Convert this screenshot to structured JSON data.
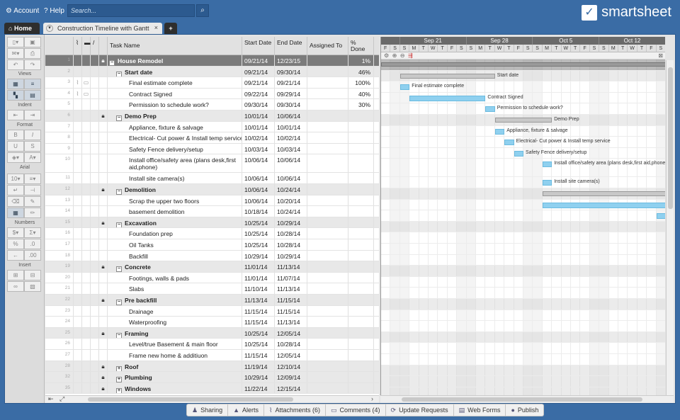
{
  "topbar": {
    "account_label": "Account",
    "help_label": "Help",
    "search_placeholder": "Search...",
    "logo_text": "smartsheet"
  },
  "tabs": {
    "home_label": "Home",
    "sheet_label": "Construction Timeline with Gantt",
    "close_glyph": "×",
    "add_glyph": "+"
  },
  "toolbar": {
    "sections": [
      "Views",
      "Indent",
      "Format",
      "Arial",
      "Numbers",
      "Insert"
    ],
    "font_size": "10"
  },
  "grid": {
    "headers": [
      "Task Name",
      "Start Date",
      "End Date",
      "Assigned To",
      "% Done"
    ],
    "rows": [
      {
        "num": "1",
        "task": "House Remodel",
        "level": 0,
        "type": "first",
        "toggle": "-",
        "lock": true,
        "start": "09/21/14",
        "end": "12/23/15",
        "pct": "1%"
      },
      {
        "num": "2",
        "task": "Start date",
        "level": 1,
        "type": "parent",
        "toggle": "-",
        "lock": false,
        "start": "09/21/14",
        "end": "09/30/14",
        "pct": "46%"
      },
      {
        "num": "3",
        "task": "Final estimate complete",
        "level": 2,
        "type": "child",
        "attach": true,
        "start": "09/21/14",
        "end": "09/21/14",
        "pct": "100%"
      },
      {
        "num": "4",
        "task": "Contract Signed",
        "level": 2,
        "type": "child",
        "attach": true,
        "start": "09/22/14",
        "end": "09/29/14",
        "pct": "40%"
      },
      {
        "num": "5",
        "task": "Permission to schedule work?",
        "level": 2,
        "type": "child",
        "start": "09/30/14",
        "end": "09/30/14",
        "pct": "30%"
      },
      {
        "num": "6",
        "task": "Demo Prep",
        "level": 1,
        "type": "parent",
        "toggle": "-",
        "lock": true,
        "start": "10/01/14",
        "end": "10/06/14",
        "pct": ""
      },
      {
        "num": "7",
        "task": "Appliance, fixture & salvage",
        "level": 2,
        "type": "child",
        "start": "10/01/14",
        "end": "10/01/14",
        "pct": ""
      },
      {
        "num": "8",
        "task": "Electrical- Cut power & Install temp service",
        "level": 2,
        "type": "child",
        "start": "10/02/14",
        "end": "10/02/14",
        "pct": ""
      },
      {
        "num": "9",
        "task": "Safety Fence delivery/setup",
        "level": 2,
        "type": "child",
        "start": "10/03/14",
        "end": "10/03/14",
        "pct": ""
      },
      {
        "num": "10",
        "task": "Install office/safety area (plans desk,first aid,phone)",
        "level": 2,
        "type": "child",
        "tall": true,
        "start": "10/06/14",
        "end": "10/06/14",
        "pct": ""
      },
      {
        "num": "11",
        "task": "Install site camera(s)",
        "level": 2,
        "type": "child",
        "start": "10/06/14",
        "end": "10/06/14",
        "pct": ""
      },
      {
        "num": "12",
        "task": "Demolition",
        "level": 1,
        "type": "parent",
        "toggle": "-",
        "lock": true,
        "start": "10/06/14",
        "end": "10/24/14",
        "pct": ""
      },
      {
        "num": "13",
        "task": "Scrap the upper two floors",
        "level": 2,
        "type": "child",
        "start": "10/06/14",
        "end": "10/20/14",
        "pct": ""
      },
      {
        "num": "14",
        "task": "basement demolition",
        "level": 2,
        "type": "child",
        "start": "10/18/14",
        "end": "10/24/14",
        "pct": ""
      },
      {
        "num": "15",
        "task": "Excavation",
        "level": 1,
        "type": "parent",
        "toggle": "-",
        "lock": true,
        "start": "10/25/14",
        "end": "10/29/14",
        "pct": ""
      },
      {
        "num": "16",
        "task": "Foundation prep",
        "level": 2,
        "type": "child",
        "start": "10/25/14",
        "end": "10/28/14",
        "pct": ""
      },
      {
        "num": "17",
        "task": "Oil Tanks",
        "level": 2,
        "type": "child",
        "start": "10/25/14",
        "end": "10/28/14",
        "pct": ""
      },
      {
        "num": "18",
        "task": "Backfill",
        "level": 2,
        "type": "child",
        "start": "10/29/14",
        "end": "10/29/14",
        "pct": ""
      },
      {
        "num": "19",
        "task": "Concrete",
        "level": 1,
        "type": "parent",
        "toggle": "-",
        "lock": true,
        "start": "11/01/14",
        "end": "11/13/14",
        "pct": ""
      },
      {
        "num": "20",
        "task": "Footings, walls & pads",
        "level": 2,
        "type": "child",
        "start": "11/01/14",
        "end": "11/07/14",
        "pct": ""
      },
      {
        "num": "21",
        "task": "Slabs",
        "level": 2,
        "type": "child",
        "start": "11/10/14",
        "end": "11/13/14",
        "pct": ""
      },
      {
        "num": "22",
        "task": "Pre backfill",
        "level": 1,
        "type": "parent",
        "toggle": "-",
        "lock": true,
        "start": "11/13/14",
        "end": "11/15/14",
        "pct": ""
      },
      {
        "num": "23",
        "task": "Drainage",
        "level": 2,
        "type": "child",
        "start": "11/15/14",
        "end": "11/15/14",
        "pct": ""
      },
      {
        "num": "24",
        "task": "Waterproofing",
        "level": 2,
        "type": "child",
        "start": "11/15/14",
        "end": "11/13/14",
        "pct": ""
      },
      {
        "num": "25",
        "task": "Framing",
        "level": 1,
        "type": "parent",
        "toggle": "-",
        "lock": true,
        "start": "10/25/14",
        "end": "12/05/14",
        "pct": ""
      },
      {
        "num": "26",
        "task": "Level/true Basement & main floor",
        "level": 2,
        "type": "child",
        "start": "10/25/14",
        "end": "10/28/14",
        "pct": ""
      },
      {
        "num": "27",
        "task": "Frame new home & additiuon",
        "level": 2,
        "type": "child",
        "start": "11/15/14",
        "end": "12/05/14",
        "pct": ""
      },
      {
        "num": "28",
        "task": "Roof",
        "level": 1,
        "type": "parent",
        "toggle": "+",
        "lock": true,
        "start": "11/19/14",
        "end": "12/10/14",
        "pct": ""
      },
      {
        "num": "32",
        "task": "Plumbing",
        "level": 1,
        "type": "parent",
        "toggle": "+",
        "lock": true,
        "start": "10/29/14",
        "end": "12/09/14",
        "pct": ""
      },
      {
        "num": "35",
        "task": "Windows",
        "level": 1,
        "type": "parent",
        "toggle": "+",
        "lock": true,
        "start": "11/22/14",
        "end": "12/15/14",
        "pct": ""
      }
    ]
  },
  "gantt": {
    "weeks": [
      "Sep 21",
      "Sep 28",
      "Oct 5",
      "Oct 12"
    ],
    "days": [
      "F",
      "S",
      "S",
      "M",
      "T",
      "W",
      "T",
      "F",
      "S",
      "S",
      "M",
      "T",
      "W",
      "T",
      "F",
      "S",
      "S",
      "M",
      "T",
      "W",
      "T",
      "F",
      "S",
      "S",
      "M",
      "T",
      "W",
      "T",
      "F",
      "S"
    ],
    "bars": [
      {
        "row": 0,
        "kind": "first-sum",
        "start": 0,
        "len": 30,
        "label": ""
      },
      {
        "row": 1,
        "kind": "summary",
        "start": 2,
        "len": 10,
        "label": "Start date"
      },
      {
        "row": 2,
        "kind": "task",
        "start": 2,
        "len": 1,
        "label": "Final estimate complete"
      },
      {
        "row": 3,
        "kind": "task",
        "start": 3,
        "len": 8,
        "label": "Contract Signed"
      },
      {
        "row": 4,
        "kind": "task",
        "start": 11,
        "len": 1,
        "label": "Permission to schedule work?"
      },
      {
        "row": 5,
        "kind": "summary",
        "start": 12,
        "len": 6,
        "label": "Demo Prep"
      },
      {
        "row": 6,
        "kind": "task",
        "start": 12,
        "len": 1,
        "label": "Appliance, fixture & salvage"
      },
      {
        "row": 7,
        "kind": "task",
        "start": 13,
        "len": 1,
        "label": "Electrical- Cut power & Install temp service"
      },
      {
        "row": 8,
        "kind": "task",
        "start": 14,
        "len": 1,
        "label": "Safety Fence delivery/setup"
      },
      {
        "row": 9,
        "kind": "task",
        "start": 17,
        "len": 1,
        "label": "Install office/safety area (plans desk,first aid,phone)"
      },
      {
        "row": 10,
        "kind": "task",
        "start": 17,
        "len": 1,
        "label": "Install site camera(s)"
      },
      {
        "row": 11,
        "kind": "summary",
        "start": 17,
        "len": 13,
        "label": ""
      },
      {
        "row": 12,
        "kind": "task",
        "start": 17,
        "len": 13,
        "label": ""
      },
      {
        "row": 13,
        "kind": "task",
        "start": 29,
        "len": 1,
        "label": ""
      }
    ]
  },
  "bottombar": {
    "items": [
      {
        "icon": "♟",
        "label": "Sharing"
      },
      {
        "icon": "▲",
        "label": "Alerts"
      },
      {
        "icon": "⌇",
        "label": "Attachments (6)"
      },
      {
        "icon": "▭",
        "label": "Comments (4)"
      },
      {
        "icon": "⟳",
        "label": "Update Requests"
      },
      {
        "icon": "▤",
        "label": "Web Forms"
      },
      {
        "icon": "●",
        "label": "Publish"
      }
    ]
  }
}
